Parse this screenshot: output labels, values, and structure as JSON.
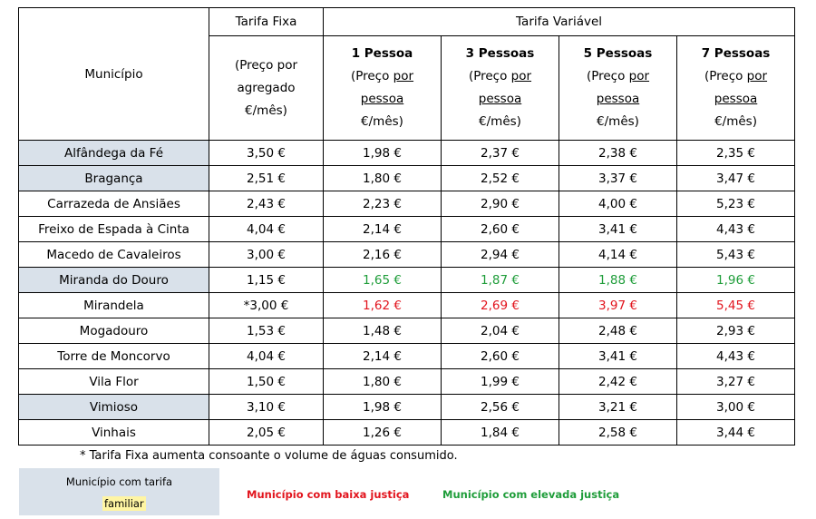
{
  "header": {
    "municipio": "Município",
    "tarifa_fixa": "Tarifa Fixa",
    "tarifa_variavel": "Tarifa Variável",
    "fixa_sub": [
      "(Preço por",
      "agregado",
      "€/mês)"
    ],
    "var_cols": [
      {
        "title": "1 Pessoa",
        "l1a": "(Preço ",
        "l1b": "por",
        "l2": "pessoa",
        "l3": "€/mês)"
      },
      {
        "title": "3 Pessoas",
        "l1a": "(Preço ",
        "l1b": "por",
        "l2": "pessoa",
        "l3": "€/mês)"
      },
      {
        "title": "5 Pessoas",
        "l1a": "(Preço ",
        "l1b": "por",
        "l2": "pessoa",
        "l3": "€/mês)"
      },
      {
        "title": "7 Pessoas",
        "l1a": "(Preço ",
        "l1b": "por",
        "l2": "pessoa",
        "l3": "€/mês)"
      }
    ]
  },
  "rows": [
    {
      "municipio": "Alfândega da Fé",
      "fixa": "3,50 €",
      "p1": "1,98 €",
      "p3": "2,37 €",
      "p5": "2,38 €",
      "p7": "2,35 €"
    },
    {
      "municipio": "Bragança",
      "fixa": "2,51 €",
      "p1": "1,80 €",
      "p3": "2,52 €",
      "p5": "3,37 €",
      "p7": "3,47 €"
    },
    {
      "municipio": "Carrazeda de Ansiães",
      "fixa": "2,43 €",
      "p1": "2,23 €",
      "p3": "2,90 €",
      "p5": "4,00 €",
      "p7": "5,23 €"
    },
    {
      "municipio": "Freixo de Espada à Cinta",
      "fixa": "4,04 €",
      "p1": "2,14 €",
      "p3": "2,60 €",
      "p5": "3,41 €",
      "p7": "4,43 €"
    },
    {
      "municipio": "Macedo de Cavaleiros",
      "fixa": "3,00 €",
      "p1": "2,16 €",
      "p3": "2,94 €",
      "p5": "4,14 €",
      "p7": "5,43 €"
    },
    {
      "municipio": "Miranda do Douro",
      "fixa": "1,15 €",
      "p1": "1,65 €",
      "p3": "1,87 €",
      "p5": "1,88 €",
      "p7": "1,96 €"
    },
    {
      "municipio": "Mirandela",
      "fixa": "*3,00 €",
      "p1": "1,62 €",
      "p3": "2,69 €",
      "p5": "3,97 €",
      "p7": "5,45 €"
    },
    {
      "municipio": "Mogadouro",
      "fixa": "1,53 €",
      "p1": "1,48 €",
      "p3": "2,04 €",
      "p5": "2,48 €",
      "p7": "2,93 €"
    },
    {
      "municipio": "Torre de Moncorvo",
      "fixa": "4,04 €",
      "p1": "2,14 €",
      "p3": "2,60 €",
      "p5": "3,41 €",
      "p7": "4,43 €"
    },
    {
      "municipio": "Vila Flor",
      "fixa": "1,50 €",
      "p1": "1,80 €",
      "p3": "1,99 €",
      "p5": "2,42 €",
      "p7": "3,27 €"
    },
    {
      "municipio": "Vimioso",
      "fixa": "3,10 €",
      "p1": "1,98 €",
      "p3": "2,56 €",
      "p5": "3,21 €",
      "p7": "3,00 €"
    },
    {
      "municipio": "Vinhais",
      "fixa": "2,05 €",
      "p1": "1,26 €",
      "p3": "1,84 €",
      "p5": "2,58 €",
      "p7": "3,44 €"
    }
  ],
  "note": "* Tarifa Fixa aumenta consoante o volume de águas consumido.",
  "legend": {
    "familiar_l1": "Município com tarifa",
    "familiar_l2": "familiar",
    "baixa": "Município com baixa justiça",
    "elevada": "Município com elevada justiça"
  },
  "colors": {
    "highlight_bg": "#d9e1ea",
    "low_justice": "#e2141d",
    "high_justice": "#1f9d3a",
    "marker_yellow": "#fff5a3"
  }
}
